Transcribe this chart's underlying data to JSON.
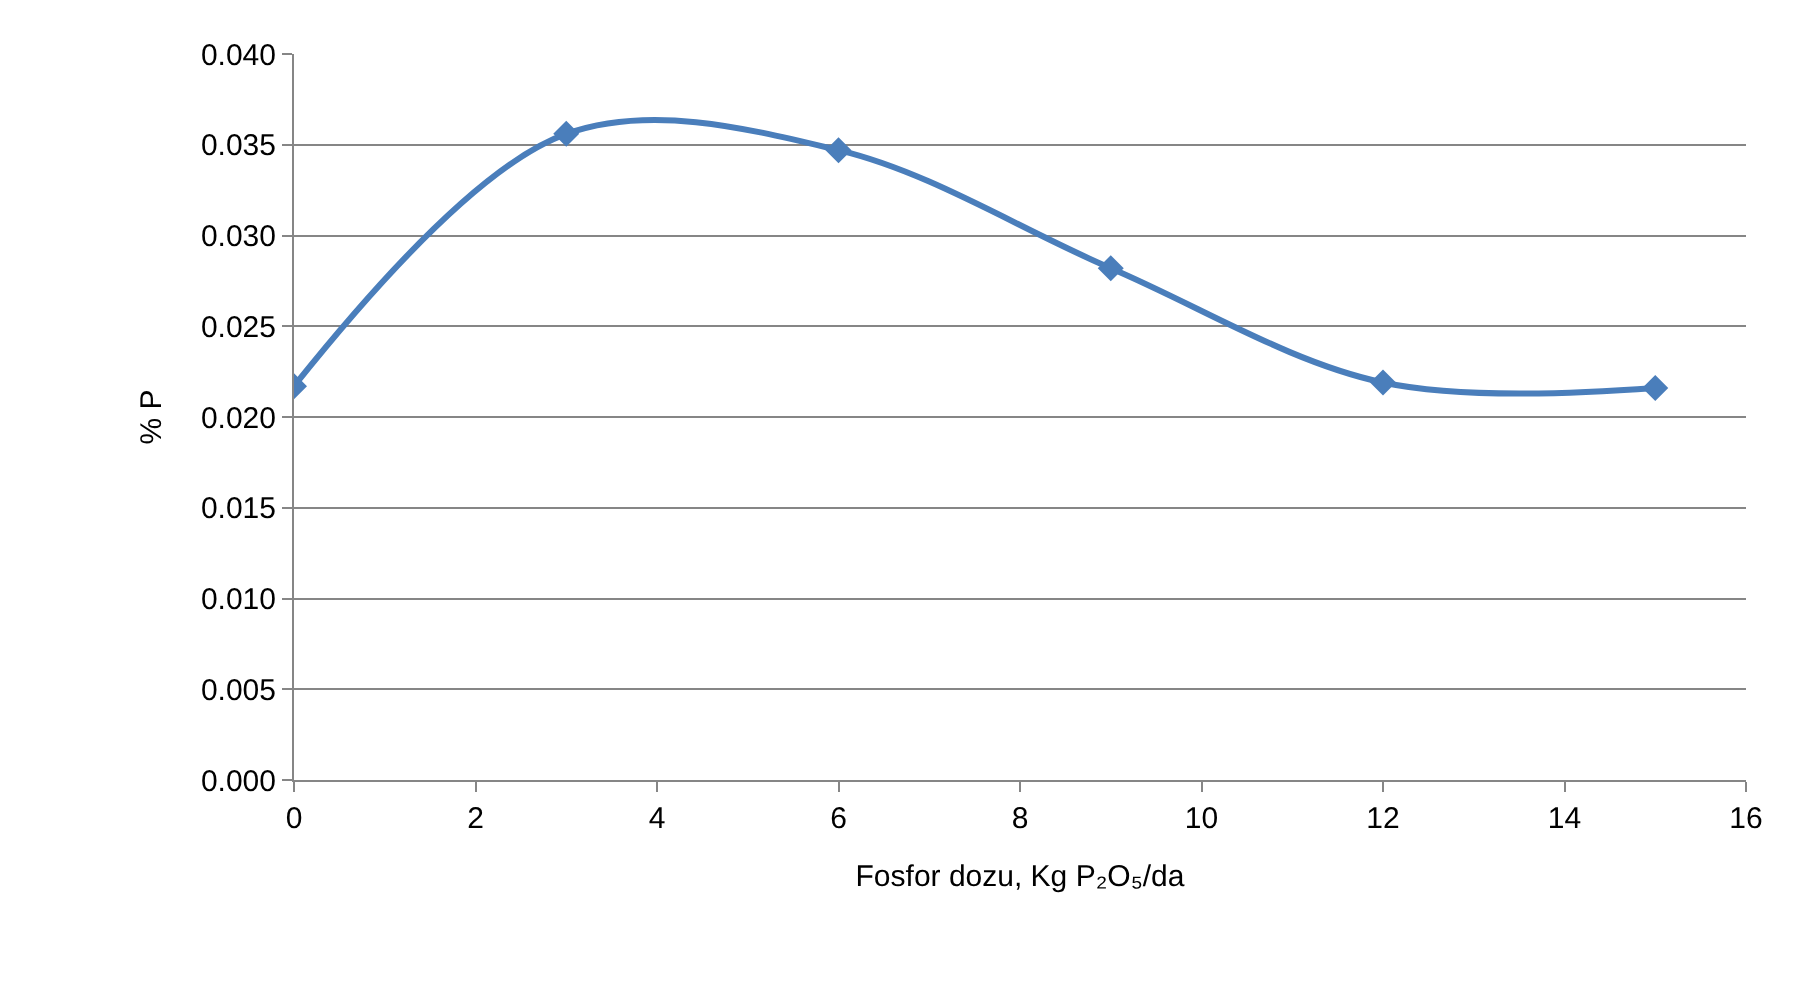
{
  "chart_data": {
    "type": "line",
    "xlabel": "Fosfor dozu, Kg P₂O₅/da",
    "ylabel": "% P",
    "x": [
      0,
      3,
      6,
      9,
      12,
      15
    ],
    "series": [
      {
        "color": "#4a7ebb",
        "values": [
          0.0217,
          0.0356,
          0.0347,
          0.0282,
          0.0219,
          0.0216
        ]
      }
    ],
    "xlim": [
      0,
      16
    ],
    "xticks": [
      0,
      2,
      4,
      6,
      8,
      10,
      12,
      14,
      16
    ],
    "ylim": [
      0,
      0.04
    ],
    "yticks": [
      {
        "value": 0,
        "label": "0.000"
      },
      {
        "value": 0.005,
        "label": "0.005"
      },
      {
        "value": 0.01,
        "label": "0.010"
      },
      {
        "value": 0.015,
        "label": "0.015"
      },
      {
        "value": 0.02,
        "label": "0.020"
      },
      {
        "value": 0.025,
        "label": "0.025"
      },
      {
        "value": 0.03,
        "label": "0.030"
      },
      {
        "value": 0.035,
        "label": "0.035"
      },
      {
        "value": 0.04,
        "label": "0.040"
      }
    ],
    "grid": "y",
    "marker": "diamond",
    "line_style": "solid"
  }
}
